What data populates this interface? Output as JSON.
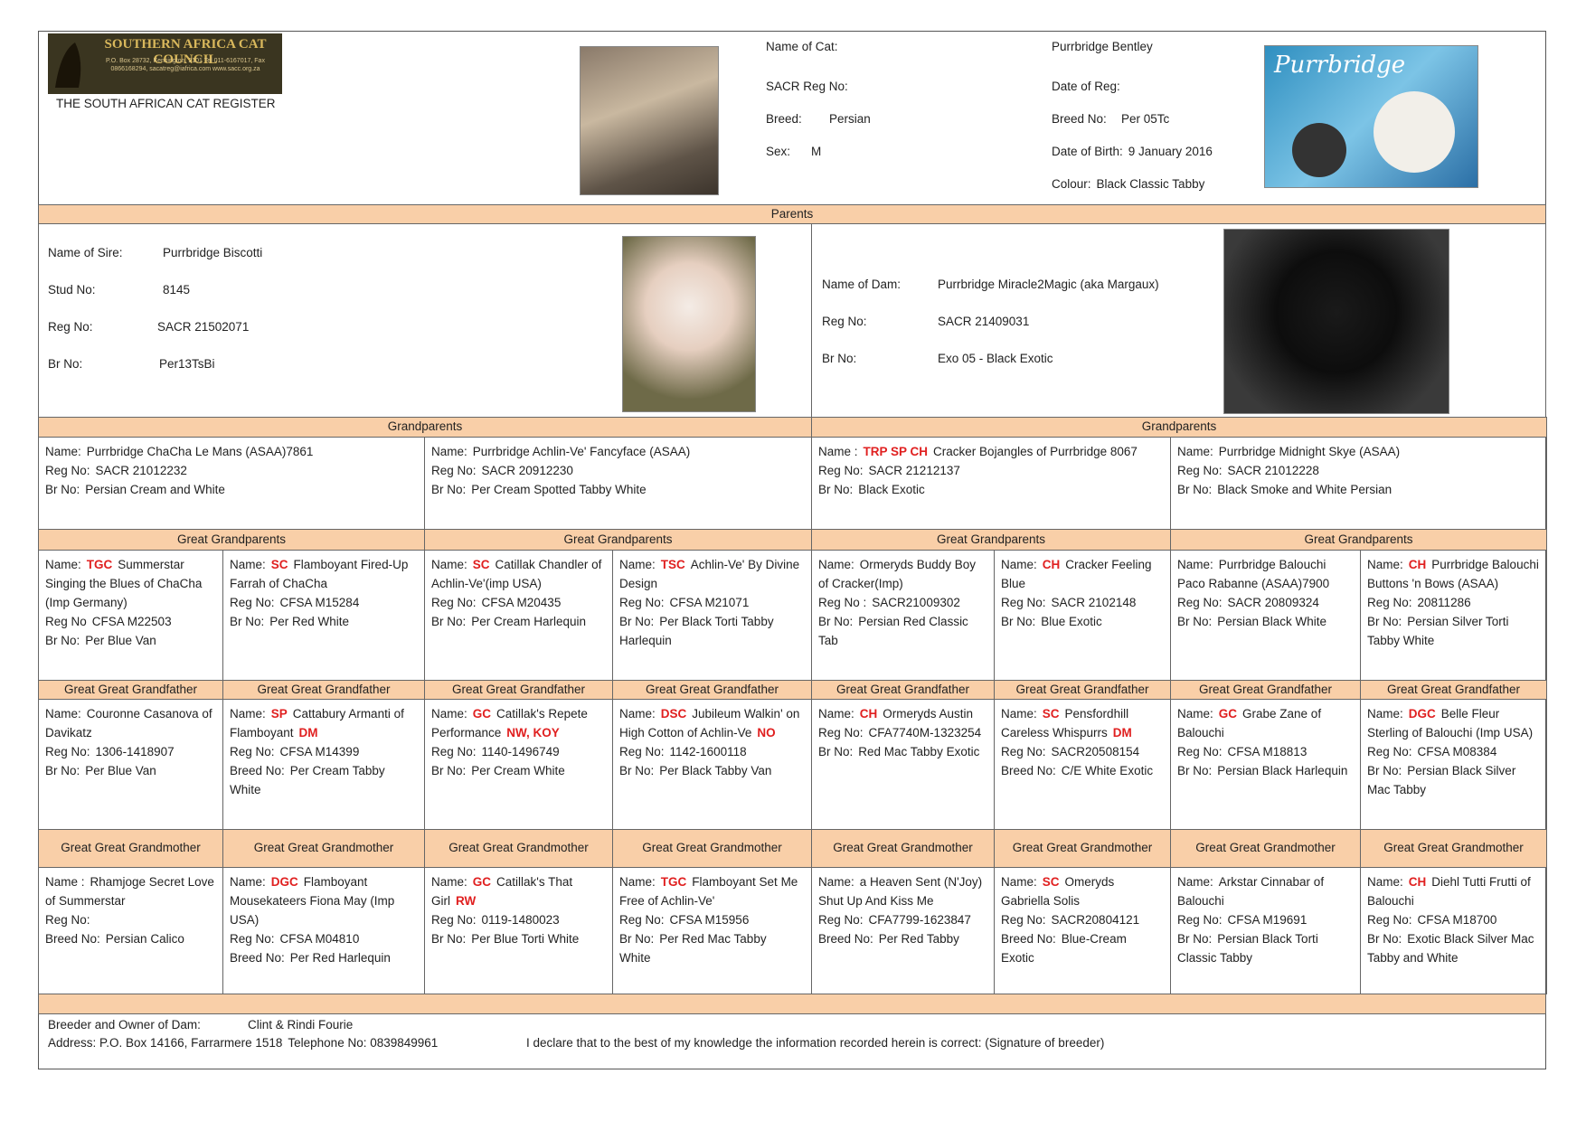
{
  "header": {
    "logo": {
      "title": "SOUTHERN AFRICA CAT COUNCIL",
      "address": "P.O. Box 28732, Kensington, 2101 Tel 011-6167017, Fax 0866168294, sacatreg@iafrica.com www.sacc.org.za"
    },
    "register": "THE SOUTH AFRICAN CAT REGISTER",
    "cattery": "Purrbridge",
    "fields": [
      {
        "label": "Name of Cat:",
        "value": "Purrbridge Bentley"
      },
      {
        "label": "SACR Reg No:"
      },
      {
        "label": "Breed:",
        "value": "Persian"
      },
      {
        "label": "Sex:",
        "value": "M"
      },
      {
        "label": "Date of Reg:"
      },
      {
        "label": "Breed No:",
        "value": "Per 05Tc"
      },
      {
        "label": "Date of Birth:",
        "value": "9 January 2016"
      },
      {
        "label": "Colour:",
        "value": "Black Classic Tabby"
      }
    ]
  },
  "parents": {
    "heading": "Parents",
    "sire": [
      {
        "label": "Name of Sire:",
        "value": "Purrbridge Biscotti"
      },
      {
        "label": "Stud No:",
        "value": "8145"
      },
      {
        "label": "Reg No:",
        "value": "SACR 21502071"
      },
      {
        "label": "Br No:",
        "value": "Per13TsBi"
      }
    ],
    "dam": [
      {
        "label": "Name of Dam:",
        "value": "Purrbridge Miracle2Magic (aka Margaux)"
      },
      {
        "label": "Reg No:",
        "value": "SACR 21409031"
      },
      {
        "label": "Br No:",
        "value": "Exo 05 - Black Exotic"
      }
    ]
  },
  "generations": [
    {
      "headings": [
        "Grandparents",
        "Grandparents"
      ],
      "cells": [
        [
          {
            "label": "Name:",
            "value": "Purrbridge ChaCha Le Mans (ASAA)7861"
          },
          {
            "label": "Reg No:",
            "value": "SACR 21012232"
          },
          {
            "label": "Br No:",
            "value": "Persian Cream and White"
          }
        ],
        [
          {
            "label": "Name:",
            "value": "Purrbridge Achlin-Ve' Fancyface (ASAA)"
          },
          {
            "label": "Reg No:",
            "value": "SACR 20912230"
          },
          {
            "label": "Br No:",
            "value": "Per Cream Spotted Tabby White"
          }
        ],
        [
          {
            "label": "Name :",
            "title": "TRP SP CH",
            "value": "Cracker Bojangles of Purrbridge 8067"
          },
          {
            "label": "Reg No:",
            "value": "SACR 21212137"
          },
          {
            "label": "Br No:",
            "value": "Black Exotic"
          }
        ],
        [
          {
            "label": "Name:",
            "value": "Purrbridge Midnight Skye (ASAA)"
          },
          {
            "label": "Reg No:",
            "value": "SACR 21012228"
          },
          {
            "label": "Br No:",
            "value": "Black Smoke and White Persian"
          }
        ]
      ]
    },
    {
      "headings": [
        "Great Grandparents",
        "Great Grandparents",
        "Great Grandparents",
        "Great Grandparents"
      ],
      "cells": [
        [
          {
            "label": "Name:",
            "title": "TGC",
            "value": "Summerstar Singing the Blues of ChaCha (Imp Germany)"
          },
          {
            "label": "Reg No",
            "value": "CFSA M22503"
          },
          {
            "label": "Br No:",
            "value": "Per Blue Van"
          }
        ],
        [
          {
            "label": "Name:",
            "title": "SC",
            "value": "Flamboyant Fired-Up Farrah of ChaCha"
          },
          {
            "label": "Reg No:",
            "value": "CFSA M15284"
          },
          {
            "label": "Br No:",
            "value": "Per Red White"
          }
        ],
        [
          {
            "label": "Name:",
            "title": "SC",
            "value": "Catillak Chandler of Achlin-Ve'(imp USA)"
          },
          {
            "label": "Reg No:",
            "value": "CFSA M20435"
          },
          {
            "label": "Br No:",
            "value": "Per Cream Harlequin"
          }
        ],
        [
          {
            "label": "Name:",
            "title": "TSC",
            "value": "Achlin-Ve' By Divine Design"
          },
          {
            "label": "Reg No:",
            "value": "CFSA M21071"
          },
          {
            "label": "Br No:",
            "value": "Per Black Torti Tabby Harlequin"
          }
        ],
        [
          {
            "label": "Name:",
            "value": "Ormeryds Buddy Boy of Cracker(Imp)"
          },
          {
            "label": "Reg No :",
            "value": "SACR21009302"
          },
          {
            "label": "Br No:",
            "value": "Persian Red Classic Tab"
          }
        ],
        [
          {
            "label": "Name:",
            "title": "CH",
            "value": "Cracker Feeling Blue"
          },
          {
            "label": "Reg No:",
            "value": "SACR 2102148"
          },
          {
            "label": "Br No:",
            "value": "Blue Exotic"
          }
        ],
        [
          {
            "label": "Name:",
            "value": "Purrbridge Balouchi Paco Rabanne (ASAA)7900"
          },
          {
            "label": "Reg No:",
            "value": "SACR 20809324"
          },
          {
            "label": "Br No:",
            "value": "Persian Black White"
          }
        ],
        [
          {
            "label": "Name:",
            "title": "CH",
            "value": "Purrbridge Balouchi Buttons 'n Bows (ASAA)"
          },
          {
            "label": "Reg No:",
            "value": "20811286"
          },
          {
            "label": "Br No:",
            "value": "Persian Silver Torti Tabby White"
          }
        ]
      ]
    },
    {
      "headings": [
        "Great Great Grandfather",
        "Great Great Grandfather",
        "Great Great Grandfather",
        "Great Great Grandfather",
        "Great Great Grandfather",
        "Great Great Grandfather",
        "Great Great Grandfather",
        "Great Great Grandfather"
      ],
      "cells": [
        [
          {
            "label": "Name:",
            "value": "Couronne Casanova of Davikatz"
          },
          {
            "label": "Reg No:",
            "value": "1306-1418907"
          },
          {
            "label": "Br No:",
            "value": "Per Blue Van"
          }
        ],
        [
          {
            "label": "Name:",
            "title": "SP",
            "value": "Cattabury Armanti of Flamboyant",
            "award": "DM"
          },
          {
            "label": "Reg No:",
            "value": "CFSA M14399"
          },
          {
            "label": "Breed No:",
            "value": "Per Cream Tabby White"
          }
        ],
        [
          {
            "label": "Name:",
            "title": "GC",
            "value": "Catillak's Repete Performance",
            "award": "NW, KOY"
          },
          {
            "label": "Reg No:",
            "value": "1140-1496749"
          },
          {
            "label": "Br No:",
            "value": "Per Cream White"
          }
        ],
        [
          {
            "label": "Name:",
            "title": "DSC",
            "value": "Jubileum Walkin' on High Cotton of Achlin-Ve",
            "award": "NO"
          },
          {
            "label": "Reg No:",
            "value": "1142-1600118"
          },
          {
            "label": "Br No:",
            "value": "Per Black Tabby Van"
          }
        ],
        [
          {
            "label": "Name:",
            "title": "CH",
            "value": "Ormeryds Austin"
          },
          {
            "label": "Reg No:",
            "value": "CFA7740M-1323254"
          },
          {
            "label": "Br No:",
            "value": "Red Mac Tabby Exotic"
          }
        ],
        [
          {
            "label": "Name:",
            "title": "SC",
            "value": "Pensfordhill Careless Whispurrs",
            "award": "DM"
          },
          {
            "label": "Reg No:",
            "value": "SACR20508154"
          },
          {
            "label": "Breed No:",
            "value": "C/E White Exotic"
          }
        ],
        [
          {
            "label": "Name:",
            "title": "GC",
            "value": "Grabe Zane of Balouchi"
          },
          {
            "label": "Reg No:",
            "value": "CFSA M18813"
          },
          {
            "label": "Br No:",
            "value": "Persian Black Harlequin"
          }
        ],
        [
          {
            "label": "Name:",
            "title": "DGC",
            "value": "Belle Fleur Sterling of Balouchi (Imp USA)"
          },
          {
            "label": "Reg No:",
            "value": "CFSA M08384"
          },
          {
            "label": "Br No:",
            "value": "Persian Black Silver Mac Tabby"
          }
        ]
      ]
    },
    {
      "headings": [
        "Great Great Grandmother",
        "Great Great Grandmother",
        "Great Great Grandmother",
        "Great Great Grandmother",
        "Great Great Grandmother",
        "Great Great Grandmother",
        "Great Great Grandmother",
        "Great Great Grandmother"
      ],
      "cells": [
        [
          {
            "label": "Name :",
            "value": "Rhamjoge Secret Love of Summerstar"
          },
          {
            "label": "Reg No:"
          },
          {
            "label": "Breed No:",
            "value": "Persian Calico"
          }
        ],
        [
          {
            "label": "Name:",
            "title": "DGC",
            "value": "Flamboyant Mousekateers Fiona May (Imp USA)"
          },
          {
            "label": "Reg No:",
            "value": "CFSA M04810"
          },
          {
            "label": "Breed No:",
            "value": "Per Red Harlequin"
          }
        ],
        [
          {
            "label": "Name:",
            "title": "GC",
            "value": "Catillak's That Girl",
            "award": "RW"
          },
          {
            "label": "Reg No:",
            "value": "0119-1480023"
          },
          {
            "label": "Br No:",
            "value": "Per Blue Torti White"
          }
        ],
        [
          {
            "label": "Name:",
            "title": "TGC",
            "value": "Flamboyant Set Me Free of Achlin-Ve'"
          },
          {
            "label": "Reg No:",
            "value": "CFSA M15956"
          },
          {
            "label": "Br No:",
            "value": "Per Red Mac Tabby White"
          }
        ],
        [
          {
            "label": "Name:",
            "value": "a Heaven Sent (N'Joy) Shut Up And Kiss Me"
          },
          {
            "label": "Reg No:",
            "value": "CFA7799-1623847"
          },
          {
            "label": "Breed No:",
            "value": "Per Red Tabby"
          }
        ],
        [
          {
            "label": "Name:",
            "title": "SC",
            "value": "Omeryds Gabriella Solis"
          },
          {
            "label": "Reg No:",
            "value": "SACR20804121"
          },
          {
            "label": "Breed No:",
            "value": "Blue-Cream Exotic"
          }
        ],
        [
          {
            "label": "Name:",
            "value": "Arkstar Cinnabar of Balouchi"
          },
          {
            "label": "Reg No:",
            "value": "CFSA M19691"
          },
          {
            "label": "Br No:",
            "value": "Persian Black Torti Classic Tabby"
          }
        ],
        [
          {
            "label": "Name:",
            "title": "CH",
            "value": "Diehl Tutti Frutti of Balouchi"
          },
          {
            "label": "Reg No:",
            "value": "CFSA M18700"
          },
          {
            "label": "Br No:",
            "value": "Exotic Black Silver Mac Tabby and White"
          }
        ]
      ]
    }
  ],
  "footer": {
    "owner_label": "Breeder and Owner of Dam:",
    "owner": "Clint & Rindi Fourie",
    "address": "Address: P.O. Box 14166, Farrarmere 1518",
    "telephone": "Telephone No:  0839849961",
    "declaration": "I declare that to the best of my knowledge the information recorded herein is correct:  (Signature of breeder)"
  }
}
